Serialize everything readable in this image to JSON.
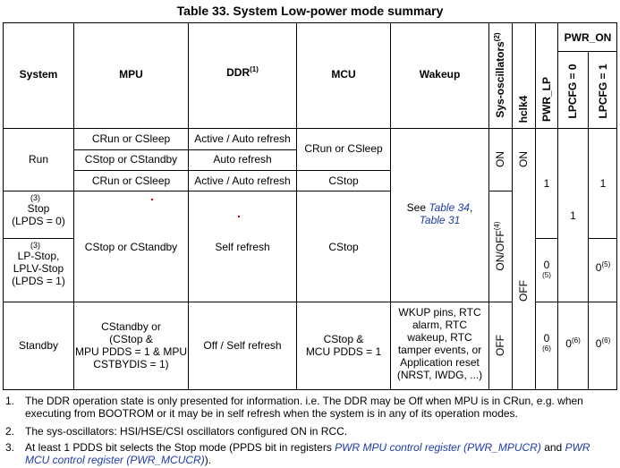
{
  "title": "Table 33. System Low-power mode summary",
  "headers": {
    "system": "System",
    "mpu": "MPU",
    "ddr": "DDR",
    "ddr_note": "(1)",
    "mcu": "MCU",
    "wakeup": "Wakeup",
    "sys_osc": "Sys-oscillators",
    "sys_osc_note": "(2)",
    "hclk4": "hclk4",
    "pwr_lp": "PWR_LP",
    "pwr_on": "PWR_ON",
    "lpcfg0": "LPCFG = 0",
    "lpcfg1": "LPCFG = 1"
  },
  "rows": {
    "run": {
      "system": "Run",
      "sub": [
        {
          "mpu": "CRun or CSleep",
          "ddr": "Active / Auto refresh"
        },
        {
          "mpu": "CStop or CStandby",
          "ddr": "Auto refresh"
        },
        {
          "mpu": "CRun or CSleep",
          "ddr": "Active / Auto refresh"
        }
      ],
      "mcu_a": "CRun or CSleep",
      "mcu_b": "CStop",
      "sys_osc": "ON",
      "hclk4": "ON",
      "pwr_lp": "1",
      "lpcfg1": "1"
    },
    "stop": {
      "note": "(3)",
      "system_line1": "Stop",
      "system_line2": "(LPDS = 0)"
    },
    "lp_stop": {
      "note": "(3)",
      "system_line1": "LP-Stop,",
      "system_line2": "LPLV-Stop",
      "system_line3": "(LPDS = 1)",
      "pwr_lp": "0",
      "pwr_lp_note": "(5)",
      "lpcfg1": "0",
      "lpcfg1_note": "(5)"
    },
    "stop_group": {
      "mpu": "CStop or CStandby",
      "ddr": "Self refresh",
      "mcu": "CStop",
      "wakeup_prefix": "See ",
      "wakeup_link1": "Table 34",
      "wakeup_sep": ",",
      "wakeup_link2": "Table 31",
      "sys_osc": "ON/OFF",
      "sys_osc_note": "(4)",
      "lpcfg0": "1"
    },
    "standby": {
      "system": "Standby",
      "mpu_lines": [
        "CStandby or",
        "(CStop &",
        "MPU PDDS = 1 & MPU",
        "CSTBYDIS = 1)"
      ],
      "ddr": "Off / Self refresh",
      "mcu_lines": [
        "CStop &",
        "MCU PDDS = 1"
      ],
      "wakeup_lines": [
        "WKUP pins, RTC",
        "alarm, RTC",
        "wakeup, RTC",
        "tamper events, or",
        "Application reset",
        "(NRST, IWDG, ...)"
      ],
      "sys_osc": "OFF",
      "pwr_lp": "0",
      "pwr_lp_note": "(6)",
      "lpcfg0": "0",
      "lpcfg0_note": "(6)",
      "lpcfg1": "0",
      "lpcfg1_note": "(6)"
    },
    "hclk4_off": "OFF"
  },
  "notes": [
    {
      "num": "1.",
      "text": "The DDR operation state is only presented for information. i.e. The DDR may be Off when MPU is in CRun, e.g. when executing from BOOTROM or it may be in self refresh when the system is in any of its operation modes."
    },
    {
      "num": "2.",
      "text": "The sys-oscillators: HSI/HSE/CSI oscillators configured ON in RCC."
    },
    {
      "num": "3.",
      "text_prefix": "At least 1 PDDS bit selects the Stop mode (PPDS bit in registers ",
      "link1": "PWR MPU control register (PWR_MPUCR)",
      "text_mid": " and ",
      "link2": "PWR MCU control register (PWR_MCUCR)",
      "text_suffix": ")."
    }
  ]
}
